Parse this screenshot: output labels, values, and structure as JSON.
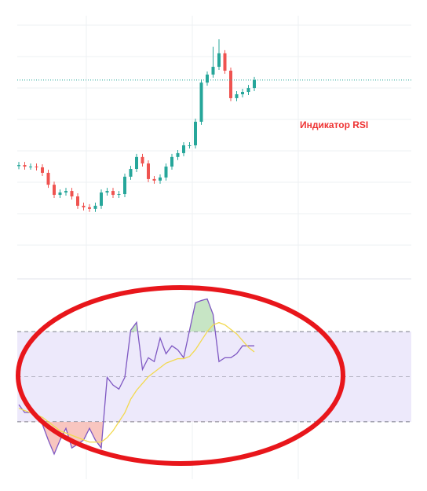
{
  "chart_data": [
    {
      "type": "candlestick",
      "annotation": "Индикатор RSI",
      "categories": [
        null,
        null,
        null,
        null,
        null,
        null,
        null,
        null,
        null,
        null,
        null,
        null,
        null,
        null,
        null,
        null,
        null,
        null,
        null,
        null,
        null,
        null,
        null,
        null,
        null,
        null,
        null,
        null,
        null,
        null,
        null,
        null,
        null,
        null,
        null,
        null,
        null,
        null,
        null,
        null,
        null
      ],
      "open": [
        42.0,
        42.4,
        41.8,
        41.8,
        41.5,
        39.4,
        34.8,
        30.9,
        31.8,
        32.4,
        30.3,
        26.7,
        26.1,
        25.5,
        26.7,
        31.8,
        32.4,
        30.9,
        31.2,
        37.9,
        40.9,
        45.5,
        43.0,
        37.0,
        36.4,
        37.6,
        41.8,
        45.5,
        47.0,
        50.0,
        50.0,
        59.1,
        74.2,
        77.3,
        80.3,
        85.5,
        78.8,
        68.2,
        69.7,
        70.6,
        72.1
      ],
      "high": [
        43.6,
        43.6,
        43.0,
        43.0,
        42.7,
        40.6,
        36.0,
        33.0,
        33.6,
        33.6,
        31.5,
        27.9,
        27.3,
        27.9,
        33.0,
        33.6,
        33.6,
        32.4,
        39.1,
        42.1,
        46.7,
        46.7,
        44.2,
        38.2,
        38.8,
        43.0,
        46.7,
        48.2,
        51.2,
        51.2,
        60.3,
        75.4,
        78.5,
        88.0,
        90.9,
        86.7,
        80.0,
        70.9,
        71.8,
        73.3,
        76.4
      ],
      "low": [
        40.8,
        40.6,
        40.6,
        40.3,
        38.2,
        33.6,
        29.7,
        29.7,
        30.6,
        29.1,
        25.5,
        24.9,
        24.3,
        24.3,
        25.5,
        30.6,
        29.7,
        29.7,
        30.0,
        36.7,
        39.7,
        41.8,
        35.8,
        35.2,
        35.2,
        36.4,
        40.6,
        44.3,
        45.8,
        48.8,
        48.8,
        57.9,
        73.0,
        76.1,
        79.1,
        77.6,
        67.0,
        67.0,
        68.5,
        69.4,
        70.9
      ],
      "close": [
        42.4,
        41.8,
        41.8,
        41.5,
        39.4,
        34.8,
        30.9,
        31.8,
        32.4,
        30.3,
        26.7,
        26.1,
        25.5,
        26.7,
        31.8,
        32.4,
        30.9,
        31.2,
        37.9,
        40.9,
        45.5,
        43.0,
        37.0,
        36.4,
        37.6,
        41.8,
        45.5,
        47.0,
        50.0,
        50.0,
        59.1,
        74.2,
        77.3,
        80.3,
        85.5,
        78.8,
        68.2,
        69.7,
        70.6,
        72.1,
        75.2
      ],
      "ylim": [
        0,
        100
      ],
      "up_color": "#26a69a",
      "down_color": "#ef5350",
      "last_price_line": true
    },
    {
      "type": "line",
      "categories": [
        null,
        null,
        null,
        null,
        null,
        null,
        null,
        null,
        null,
        null,
        null,
        null,
        null,
        null,
        null,
        null,
        null,
        null,
        null,
        null,
        null,
        null,
        null,
        null,
        null,
        null,
        null,
        null,
        null,
        null,
        null,
        null,
        null,
        null,
        null,
        null,
        null,
        null,
        null,
        null,
        null
      ],
      "series": [
        {
          "color": "#7e57c2",
          "values": [
            37.6,
            34.1,
            34.1,
            32.3,
            28.9,
            21.9,
            15.7,
            21.9,
            27.1,
            18.4,
            20.1,
            21.9,
            27.1,
            21.9,
            18.4,
            49.7,
            46.3,
            44.5,
            49.7,
            70.6,
            74.1,
            53.2,
            58.4,
            56.7,
            67.1,
            60.2,
            63.7,
            61.9,
            58.4,
            70.6,
            82.8,
            83.8,
            84.5,
            77.6,
            56.7,
            58.4,
            58.4,
            60.2,
            63.7,
            63.7,
            63.7
          ]
        },
        {
          "color": "#f2d94e",
          "values": [
            36,
            35,
            34,
            33,
            32,
            30,
            28,
            26,
            25,
            24,
            23,
            22,
            21,
            21,
            21,
            23,
            26,
            30,
            34,
            40,
            44,
            47,
            50,
            52,
            54,
            56,
            57,
            58,
            58,
            59,
            62,
            66,
            70,
            73,
            74,
            73,
            71,
            69,
            66,
            63,
            61
          ]
        }
      ],
      "ylim": [
        0,
        100
      ],
      "levels": [
        70,
        50,
        30
      ],
      "band_color": "#ede9fb"
    }
  ]
}
